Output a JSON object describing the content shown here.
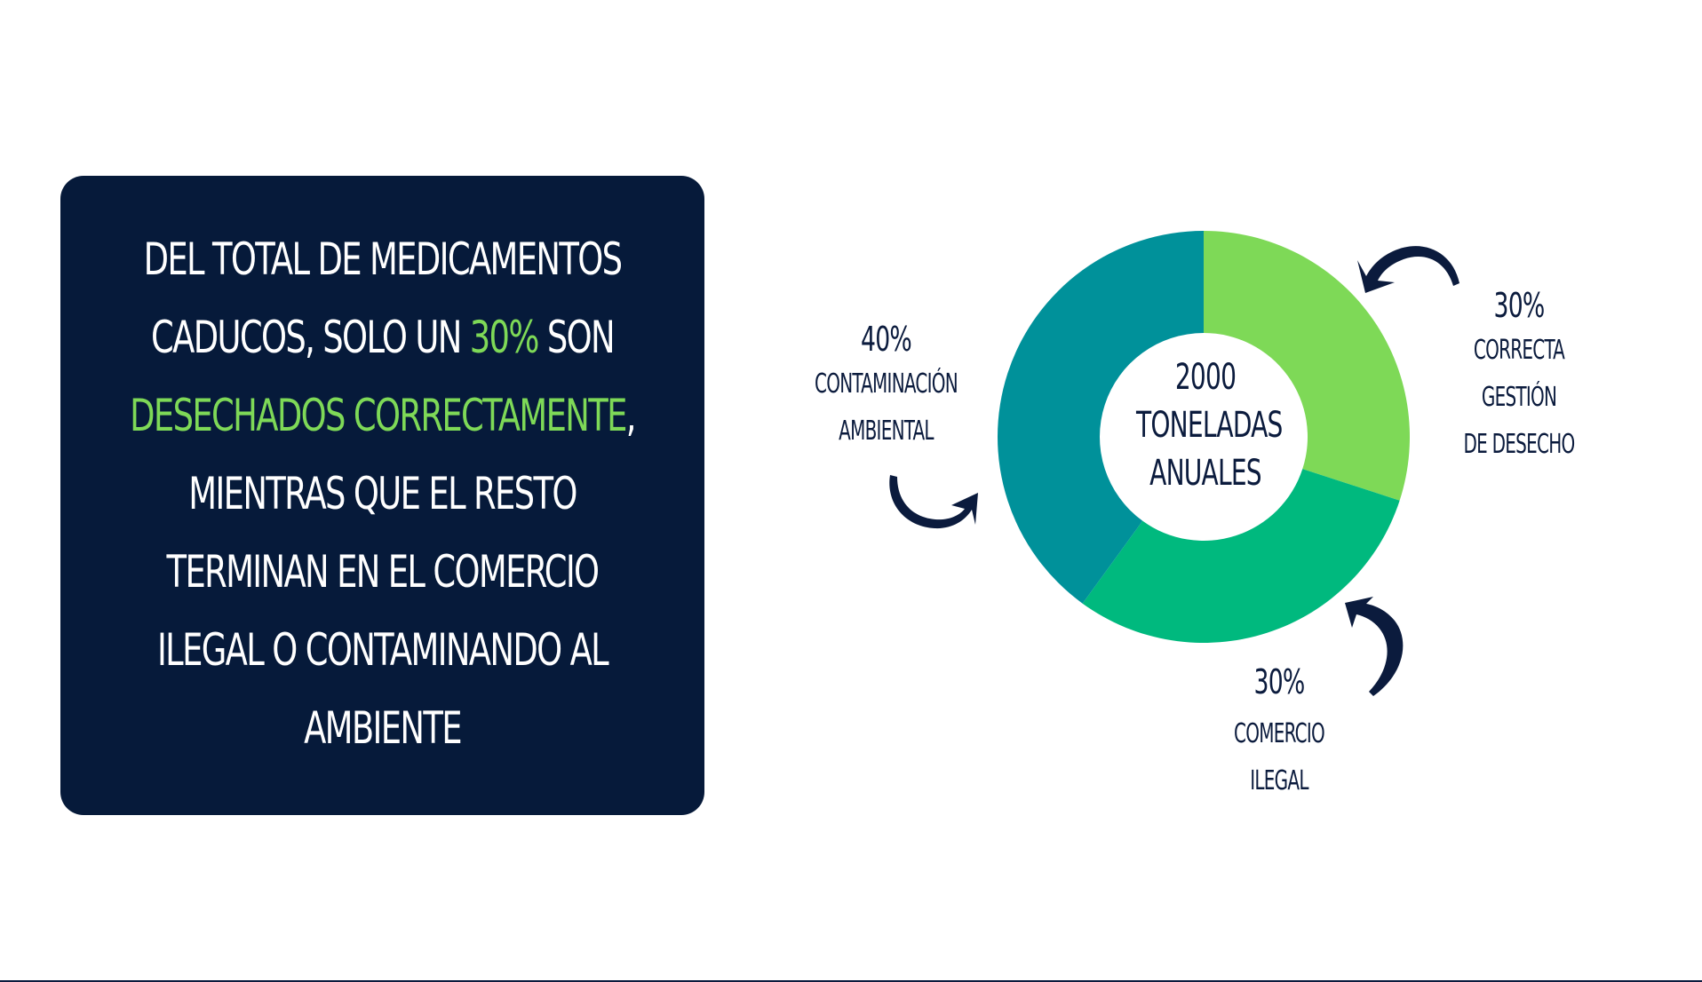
{
  "panel": {
    "segments": [
      {
        "text": "DEL TOTAL DE MEDICAMENTOS CADUCOS, SOLO UN ",
        "highlight": false
      },
      {
        "text": "30%",
        "highlight": true
      },
      {
        "text": " SON ",
        "highlight": false
      },
      {
        "text": "DESECHADOS CORRECTAMENTE",
        "highlight": true
      },
      {
        "text": ", MIENTRAS QUE EL RESTO TERMINAN EN EL COMERCIO ILEGAL O CONTAMINANDO AL AMBIENTE",
        "highlight": false
      }
    ]
  },
  "center": {
    "line1": "2000",
    "line2": "TONELADAS",
    "line3": "ANUALES"
  },
  "annotations": {
    "left": {
      "pct": "40%",
      "desc1": "CONTAMINACIÓN",
      "desc2": "AMBIENTAL"
    },
    "right": {
      "pct": "30%",
      "desc1": "CORRECTA GESTIÓN",
      "desc2": "DE DESECHO"
    },
    "bottom": {
      "pct": "30%",
      "desc1": "COMERCIO ILEGAL"
    }
  },
  "colors": {
    "panel_bg": "#061a3a",
    "highlight": "#7ed957",
    "text_dark": "#0b1b3d"
  },
  "chart_data": {
    "type": "pie",
    "variant": "donut",
    "categories": [
      "CORRECTA GESTIÓN DE DESECHO",
      "COMERCIO ILEGAL",
      "CONTAMINACIÓN AMBIENTAL"
    ],
    "values": [
      30,
      30,
      40
    ],
    "colors": [
      "#7ed957",
      "#00b97e",
      "#00919a"
    ]
  }
}
